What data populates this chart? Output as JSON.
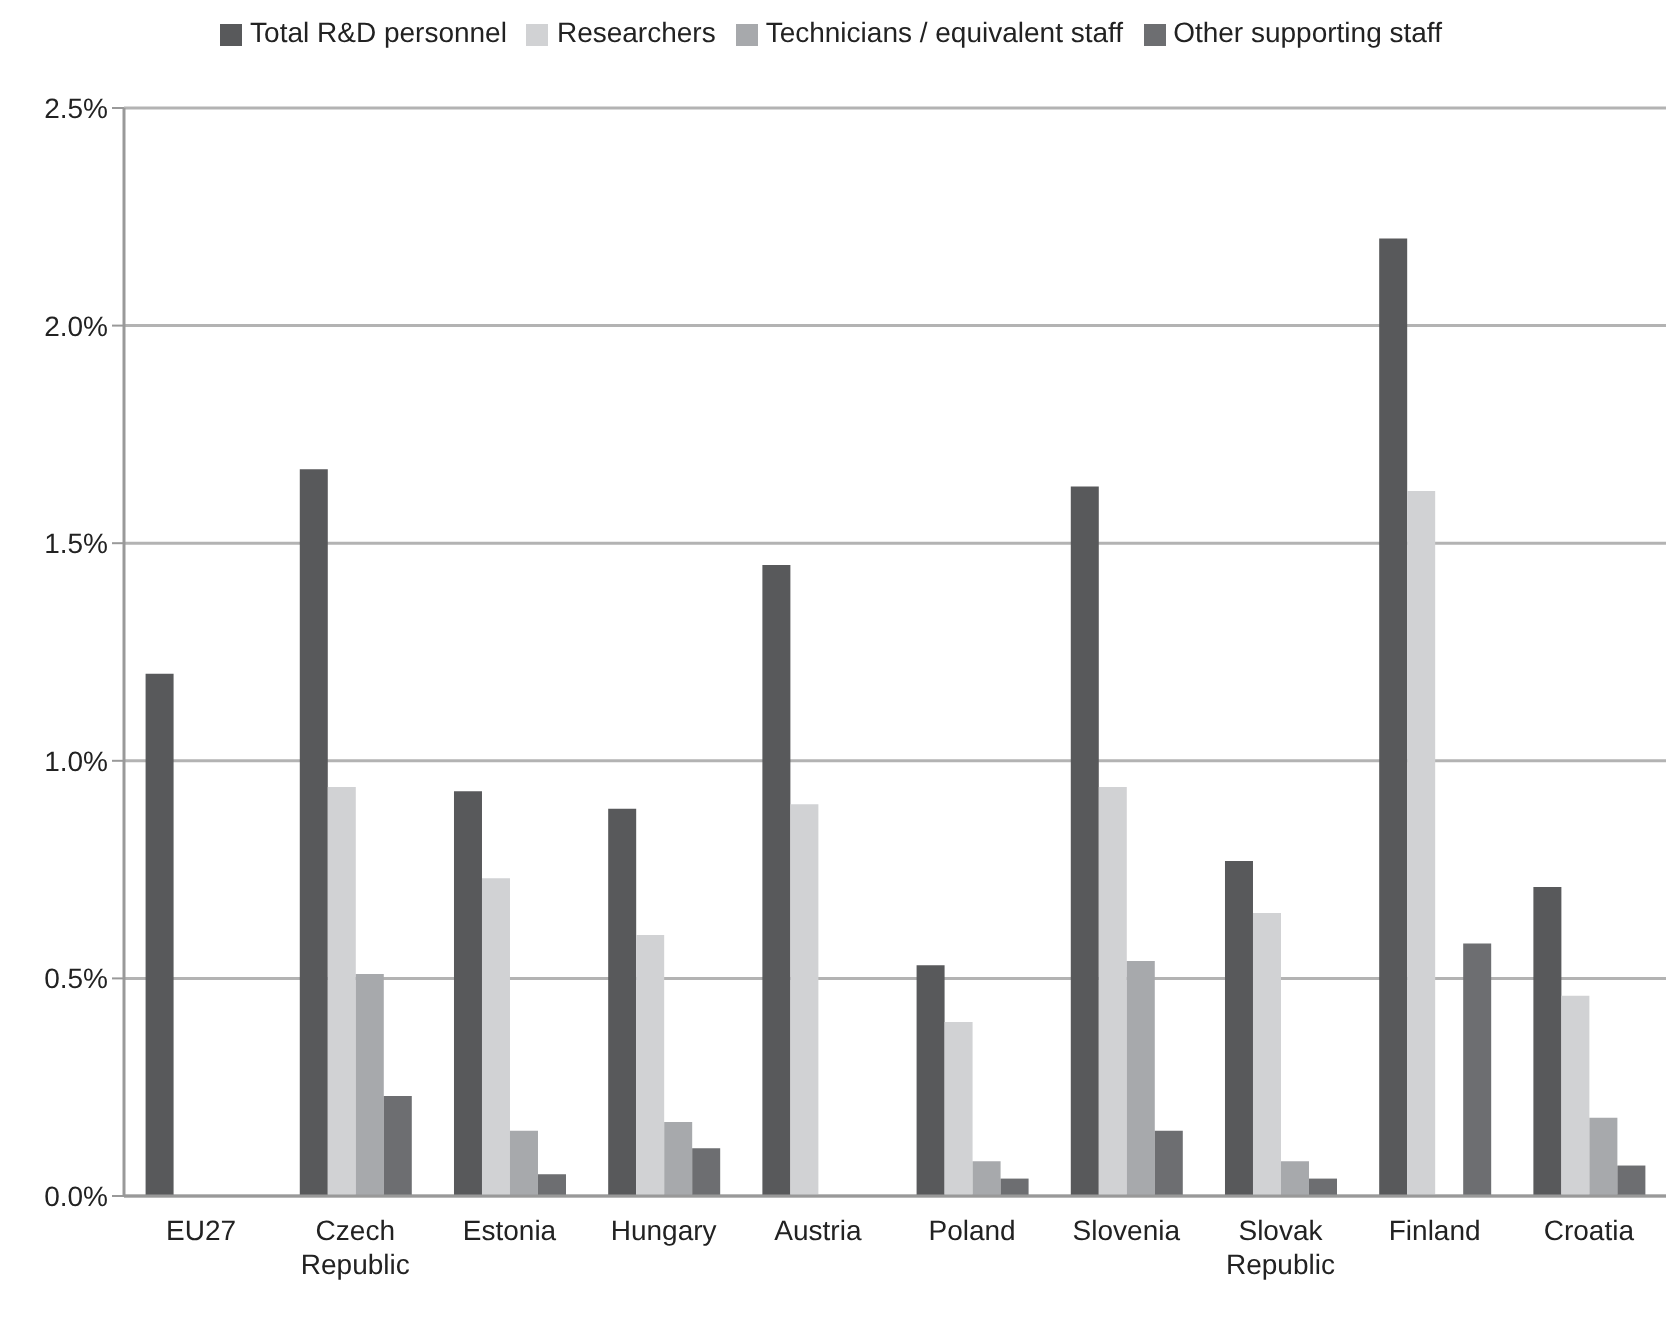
{
  "chart_data": {
    "type": "bar",
    "categories": [
      "EU27",
      "Czech Republic",
      "Estonia",
      "Hungary",
      "Austria",
      "Poland",
      "Slovenia",
      "Slovak Republic",
      "Finland",
      "Croatia"
    ],
    "series": [
      {
        "name": "Total R&D personnel",
        "color": "#58595b",
        "values": [
          1.2,
          1.67,
          0.93,
          0.89,
          1.45,
          0.53,
          1.63,
          0.77,
          2.2,
          0.71
        ]
      },
      {
        "name": "Researchers",
        "color": "#d1d2d4",
        "values": [
          null,
          0.94,
          0.73,
          0.6,
          0.9,
          0.4,
          0.94,
          0.65,
          1.62,
          0.46
        ]
      },
      {
        "name": "Technicians / equivalent staff",
        "color": "#a7a9ac",
        "values": [
          null,
          0.51,
          0.15,
          0.17,
          null,
          0.08,
          0.54,
          0.08,
          null,
          0.18
        ]
      },
      {
        "name": "Other supporting staff",
        "color": "#6d6e71",
        "values": [
          null,
          0.23,
          0.05,
          0.11,
          null,
          0.04,
          0.15,
          0.04,
          0.58,
          0.07
        ]
      }
    ],
    "ylim": [
      0,
      2.5
    ],
    "yticks": [
      {
        "value": 0,
        "label": "0.0%"
      },
      {
        "value": 0.5,
        "label": "0.5%"
      },
      {
        "value": 1,
        "label": "1.0%"
      },
      {
        "value": 1.5,
        "label": "1.5%"
      },
      {
        "value": 2,
        "label": "2.0%"
      },
      {
        "value": 2.5,
        "label": "2.5%"
      }
    ],
    "grid": "y",
    "legend": "top"
  }
}
